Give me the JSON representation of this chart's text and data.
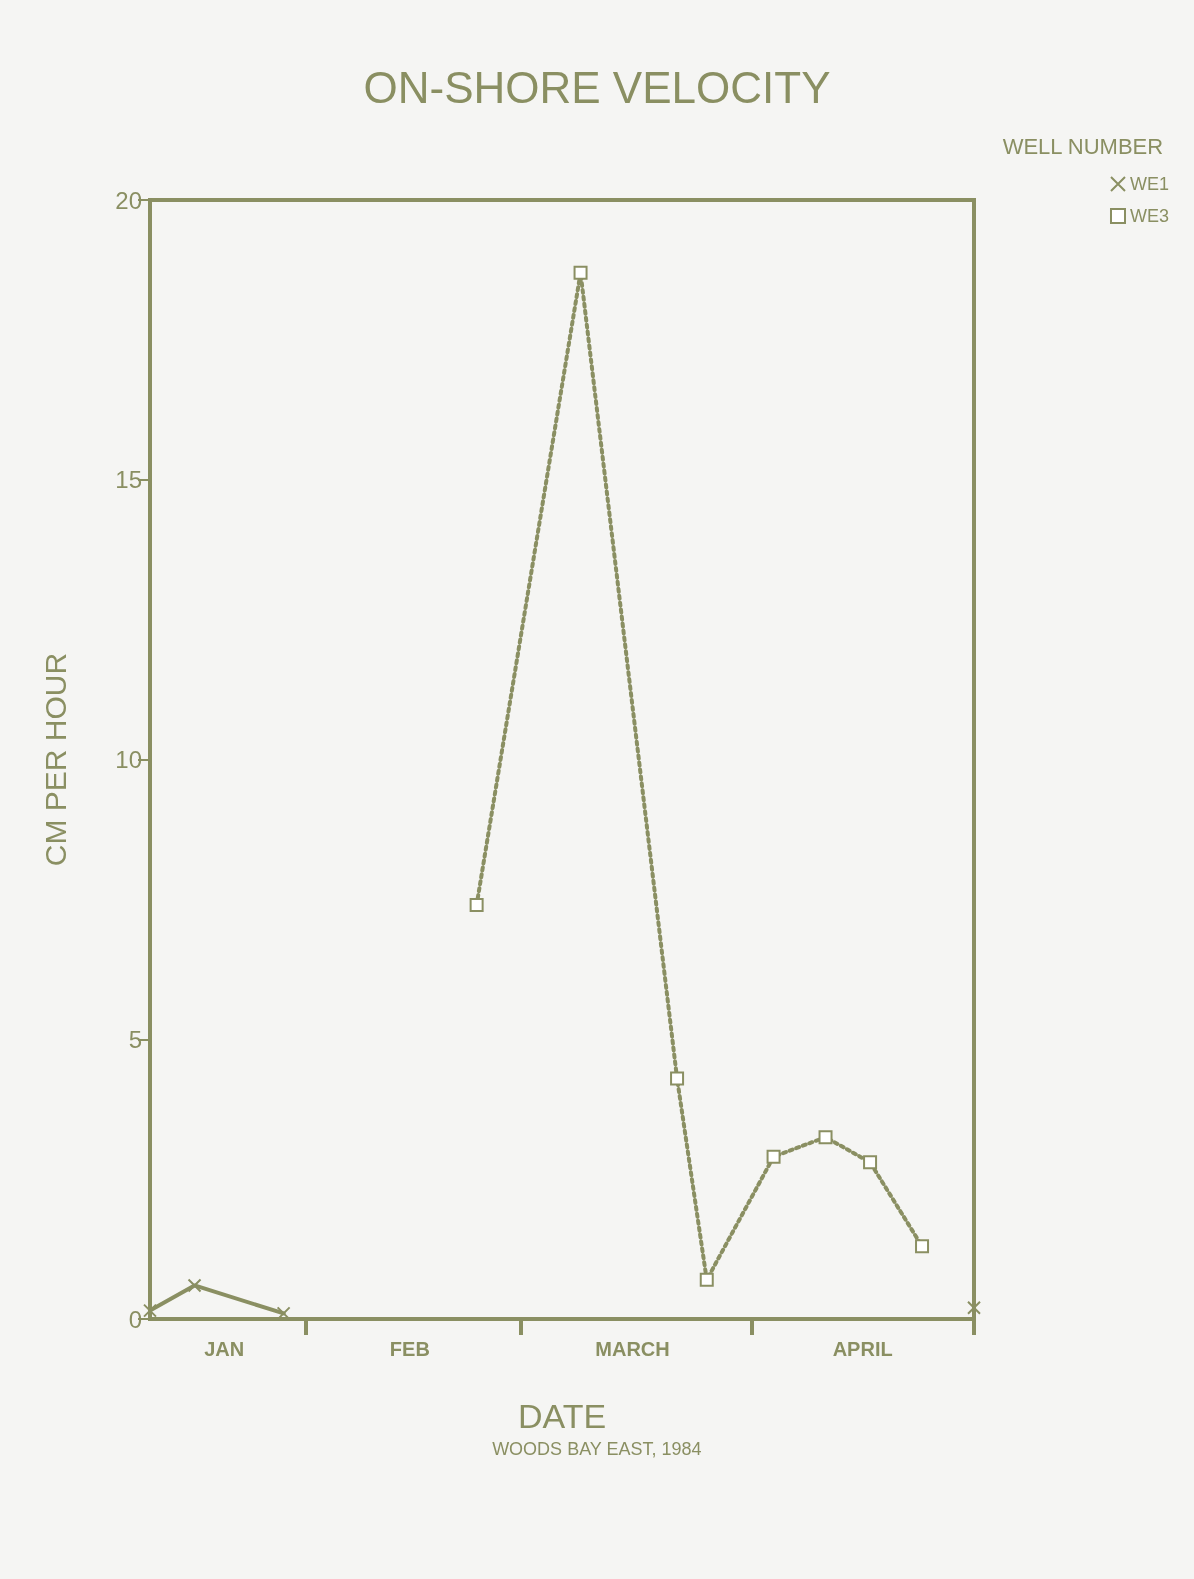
{
  "chart_data": {
    "type": "line",
    "title": "ON-SHORE VELOCITY",
    "xlabel": "DATE",
    "ylabel": "CM PER HOUR",
    "legend_title": "WELL NUMBER",
    "annotations": [
      "WOODS BAY EAST, 1984"
    ],
    "xlim": [
      "1984-01-11",
      "1984-05-01"
    ],
    "xticks": [
      {
        "value": "1984-01-21",
        "label": "JAN"
      },
      {
        "value": "1984-02-01",
        "label": null
      },
      {
        "value": "1984-02-15",
        "label": "FEB"
      },
      {
        "value": "1984-03-01",
        "label": null
      },
      {
        "value": "1984-03-16",
        "label": "MARCH"
      },
      {
        "value": "1984-04-01",
        "label": null
      },
      {
        "value": "1984-04-16",
        "label": "APRIL"
      },
      {
        "value": "1984-05-01",
        "label": null
      }
    ],
    "ylim": [
      0,
      20
    ],
    "yticks": [
      0,
      5,
      10,
      15,
      20
    ],
    "grid": false,
    "legend": "top right",
    "series": [
      {
        "name": "WE1",
        "color": "#8a8f62",
        "marker": "cross",
        "line_style": "solid",
        "x": [
          "1984-01-11",
          "1984-01-17",
          "1984-01-29",
          "1984-03-01",
          "1984-05-01"
        ],
        "values": [
          0.15,
          0.6,
          0.1,
          null,
          0.2
        ]
      },
      {
        "name": "WE3",
        "color": "#8a8f62",
        "marker": "square",
        "line_style": "dotted",
        "x": [
          "1984-02-24",
          "1984-03-09",
          "1984-03-22",
          "1984-03-26",
          "1984-04-04",
          "1984-04-11",
          "1984-04-17",
          "1984-04-24"
        ],
        "values": [
          7.4,
          18.7,
          4.3,
          0.7,
          2.9,
          3.25,
          2.8,
          1.3
        ]
      }
    ]
  }
}
